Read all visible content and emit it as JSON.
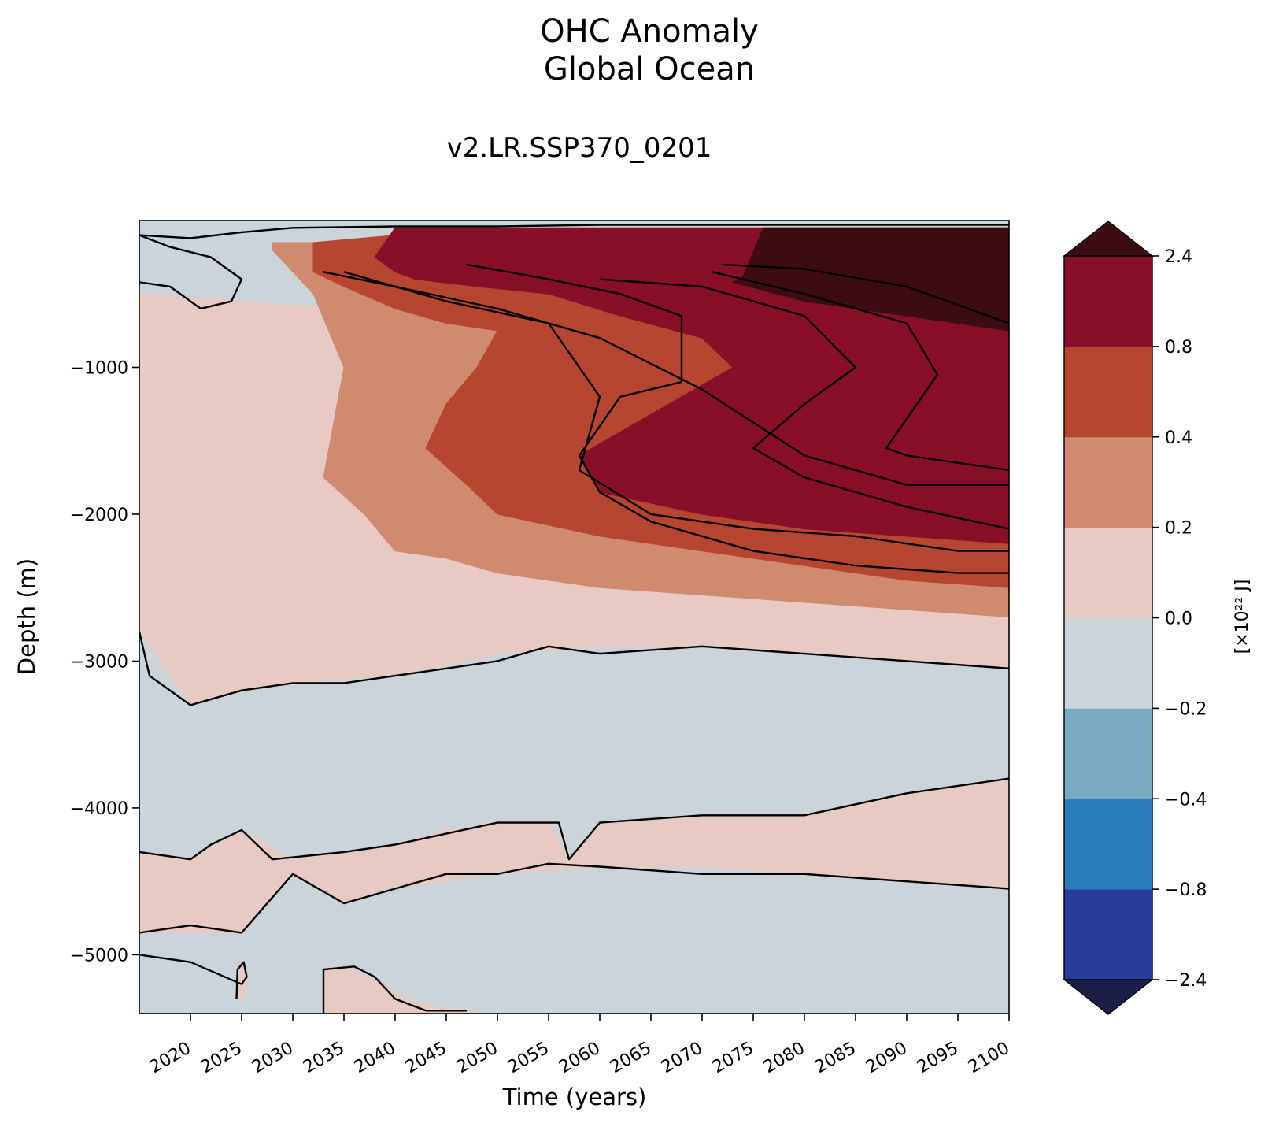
{
  "chart_data": {
    "type": "heatmap",
    "title": "OHC Anomaly",
    "subtitle": "Global Ocean",
    "run_name": "v2.LR.SSP370_0201",
    "xlabel": "Time (years)",
    "ylabel": "Depth (m)",
    "colorbar_label": "[×10²² J]",
    "xlim": [
      2015,
      2100
    ],
    "ylim": [
      -5400,
      0
    ],
    "x_ticks": [
      2020,
      2025,
      2030,
      2035,
      2040,
      2045,
      2050,
      2055,
      2060,
      2065,
      2070,
      2075,
      2080,
      2085,
      2090,
      2095,
      2100
    ],
    "x_tick_labels": [
      "2020",
      "2025",
      "2030",
      "2035",
      "2040",
      "2045",
      "2050",
      "2055",
      "2060",
      "2065",
      "2070",
      "2075",
      "2080",
      "2085",
      "2090",
      "2095",
      "2100"
    ],
    "y_ticks": [
      -1000,
      -2000,
      -3000,
      -4000,
      -5000
    ],
    "y_tick_labels": [
      "−1000",
      "−2000",
      "−3000",
      "−4000",
      "−5000"
    ],
    "levels": [
      -2.4,
      -0.8,
      -0.4,
      -0.2,
      0.0,
      0.2,
      0.4,
      0.8,
      2.4
    ],
    "level_labels": [
      "−2.4",
      "−0.8",
      "−0.4",
      "−0.2",
      "0.0",
      "0.2",
      "0.4",
      "0.8",
      "2.4"
    ],
    "colors": [
      "#283c9b",
      "#2a7dbb",
      "#78abc1",
      "#cbd4d9",
      "#e6cac3",
      "#cf8a70",
      "#b64630",
      "#890e28"
    ],
    "extend_min_color": "#191e46",
    "extend_max_color": "#3d0b12",
    "bands": [
      {
        "range": "0.0–0.2",
        "color": "#e6cac3",
        "regions": [
          {
            "name": "base-mid",
            "x": [
              2015,
              2035,
              2045,
              2055,
              2065,
              2075,
              2085,
              2095,
              2100,
              2100,
              2090,
              2080,
              2070,
              2060,
              2050,
              2040,
              2030,
              2025,
              2020,
              2015
            ],
            "y": [
              -500,
              -600,
              -500,
              -400,
              -350,
              -300,
              -250,
              -200,
              -200,
              -3050,
              -3000,
              -2950,
              -2900,
              -2900,
              -2950,
              -3100,
              -3150,
              -3200,
              -3300,
              -2800
            ]
          },
          {
            "name": "deep-band",
            "x": [
              2015,
              2020,
              2025,
              2030,
              2035,
              2040,
              2045,
              2050,
              2055,
              2057,
              2060,
              2070,
              2080,
              2090,
              2100,
              2100,
              2090,
              2080,
              2070,
              2060,
              2050,
              2040,
              2035,
              2030,
              2025,
              2020,
              2015
            ],
            "y": [
              -4300,
              -4350,
              -4150,
              -4350,
              -4300,
              -4250,
              -4150,
              -4100,
              -4100,
              -4350,
              -4100,
              -4050,
              -4050,
              -3900,
              -3800,
              -4550,
              -4500,
              -4450,
              -4400,
              -4400,
              -4450,
              -4550,
              -4650,
              -4450,
              -4850,
              -4850,
              -4850
            ]
          },
          {
            "name": "bottom-patch",
            "x": [
              2033,
              2035,
              2039,
              2041,
              2045,
              2047,
              2047,
              2033
            ],
            "y": [
              -5100,
              -5080,
              -5200,
              -5300,
              -5370,
              -5370,
              -5400,
              -5400
            ]
          },
          {
            "name": "small-patch",
            "x": [
              2024.5,
              2025,
              2025.6,
              2025,
              2024.5
            ],
            "y": [
              -5150,
              -5050,
              -5200,
              -5320,
              -5250
            ]
          }
        ]
      },
      {
        "range": "0.2–0.4",
        "color": "#cf8a70",
        "regions": [
          {
            "name": "main",
            "x": [
              2028,
              2040,
              2050,
              2060,
              2070,
              2080,
              2090,
              2100,
              2100,
              2090,
              2080,
              2070,
              2060,
              2050,
              2045,
              2040,
              2037,
              2033,
              2035,
              2032,
              2028
            ],
            "y": [
              -150,
              -150,
              -100,
              -100,
              -100,
              -100,
              -100,
              -100,
              -2700,
              -2650,
              -2600,
              -2550,
              -2500,
              -2400,
              -2300,
              -2250,
              -2000,
              -1750,
              -1000,
              -500,
              -200
            ]
          }
        ]
      },
      {
        "range": "0.4–0.8",
        "color": "#b64630",
        "regions": [
          {
            "name": "main",
            "x": [
              2032,
              2040,
              2050,
              2060,
              2070,
              2080,
              2090,
              2100,
              2100,
              2090,
              2080,
              2070,
              2060,
              2050,
              2047,
              2043,
              2045,
              2048,
              2050,
              2045,
              2040,
              2035,
              2032
            ],
            "y": [
              -150,
              -100,
              -100,
              -100,
              -100,
              -100,
              -100,
              -100,
              -2500,
              -2450,
              -2350,
              -2250,
              -2150,
              -2000,
              -1800,
              -1550,
              -1250,
              -1000,
              -750,
              -700,
              -600,
              -450,
              -350
            ]
          }
        ]
      },
      {
        "range": "0.8–2.4",
        "color": "#890e28",
        "regions": [
          {
            "name": "main",
            "x": [
              2040,
              2050,
              2060,
              2070,
              2080,
              2090,
              2100,
              2100,
              2090,
              2080,
              2070,
              2060,
              2058,
              2063,
              2068,
              2073,
              2070,
              2062,
              2055,
              2048,
              2042,
              2040,
              2038
            ],
            "y": [
              -50,
              -50,
              -50,
              -50,
              -50,
              -50,
              -50,
              -2200,
              -2150,
              -2100,
              -2000,
              -1850,
              -1600,
              -1400,
              -1200,
              -1000,
              -800,
              -650,
              -500,
              -450,
              -400,
              -350,
              -250
            ]
          }
        ]
      },
      {
        "range": "> 2.4",
        "color": "#3d0b12",
        "regions": [
          {
            "name": "top-core",
            "x": [
              2076,
              2090,
              2100,
              2100,
              2090,
              2080,
              2073,
              2074
            ],
            "y": [
              -50,
              -50,
              -50,
              -750,
              -650,
              -550,
              -420,
              -380
            ]
          }
        ]
      }
    ],
    "contours": [
      {
        "name": "c1",
        "x": [
          2015,
          2020,
          2022,
          2025,
          2028,
          2035,
          2040,
          2050,
          2056,
          2057,
          2060,
          2070,
          2080,
          2090,
          2100
        ],
        "y": [
          -4300,
          -4350,
          -4250,
          -4150,
          -4350,
          -4300,
          -4250,
          -4100,
          -4100,
          -4350,
          -4100,
          -4050,
          -4050,
          -3900,
          -3800
        ]
      },
      {
        "name": "c2",
        "x": [
          2015,
          2020,
          2025,
          2030,
          2035,
          2040,
          2045,
          2050,
          2055,
          2060,
          2070,
          2080,
          2090,
          2100
        ],
        "y": [
          -4850,
          -4800,
          -4850,
          -4450,
          -4650,
          -4550,
          -4450,
          -4450,
          -4380,
          -4400,
          -4450,
          -4450,
          -4500,
          -4550
        ]
      },
      {
        "name": "c3",
        "x": [
          2015,
          2016,
          2020,
          2025,
          2030,
          2035,
          2040,
          2045,
          2050,
          2055,
          2060,
          2070,
          2080,
          2090,
          2100
        ],
        "y": [
          -2800,
          -3100,
          -3300,
          -3200,
          -3150,
          -3150,
          -3100,
          -3050,
          -3000,
          -2900,
          -2950,
          -2900,
          -2950,
          -3000,
          -3050
        ]
      },
      {
        "name": "c4",
        "x": [
          2015,
          2020,
          2025,
          2025.5,
          2025.2,
          2024.6,
          2024.5
        ],
        "y": [
          -5000,
          -5050,
          -5200,
          -5150,
          -5050,
          -5100,
          -5300
        ]
      },
      {
        "name": "c5",
        "x": [
          2033,
          2033,
          2036,
          2038,
          2040,
          2043,
          2047
        ],
        "y": [
          -5400,
          -5100,
          -5080,
          -5150,
          -5300,
          -5380,
          -5380
        ]
      },
      {
        "name": "c6",
        "x": [
          2015,
          2020,
          2025,
          2030,
          2040,
          2050,
          2060,
          2070,
          2080,
          2090,
          2100
        ],
        "y": [
          -100,
          -120,
          -80,
          -50,
          -40,
          -40,
          -30,
          -30,
          -30,
          -30,
          -30
        ]
      },
      {
        "name": "c7",
        "x": [
          2015,
          2018,
          2022,
          2025,
          2024,
          2021,
          2018,
          2015
        ],
        "y": [
          -100,
          -180,
          -250,
          -400,
          -550,
          -600,
          -450,
          -420
        ]
      },
      {
        "name": "c8",
        "x": [
          2033,
          2040,
          2050,
          2060,
          2070,
          2080,
          2090,
          2100
        ],
        "y": [
          -350,
          -450,
          -600,
          -800,
          -1150,
          -1600,
          -1800,
          -1800
        ]
      },
      {
        "name": "c9",
        "x": [
          2035,
          2045,
          2055,
          2060,
          2058,
          2065,
          2075,
          2085,
          2095,
          2100
        ],
        "y": [
          -350,
          -550,
          -700,
          -1200,
          -1700,
          -2000,
          -2100,
          -2150,
          -2250,
          -2250
        ]
      },
      {
        "name": "c10",
        "x": [
          2047,
          2055,
          2062,
          2068,
          2068,
          2062,
          2058,
          2060,
          2065,
          2075,
          2085,
          2095,
          2100
        ],
        "y": [
          -300,
          -400,
          -500,
          -650,
          -1100,
          -1200,
          -1600,
          -1850,
          -2050,
          -2250,
          -2350,
          -2400,
          -2400
        ]
      },
      {
        "name": "c11",
        "x": [
          2060,
          2070,
          2080,
          2085,
          2080,
          2075,
          2080,
          2090,
          2100
        ],
        "y": [
          -400,
          -450,
          -650,
          -1000,
          -1250,
          -1550,
          -1750,
          -1950,
          -2100
        ]
      },
      {
        "name": "c12",
        "x": [
          2071,
          2080,
          2090,
          2093,
          2088,
          2090,
          2100
        ],
        "y": [
          -350,
          -500,
          -700,
          -1050,
          -1550,
          -1600,
          -1700
        ]
      },
      {
        "name": "c13",
        "x": [
          2072,
          2080,
          2090,
          2100
        ],
        "y": [
          -300,
          -330,
          -450,
          -700
        ]
      }
    ]
  }
}
